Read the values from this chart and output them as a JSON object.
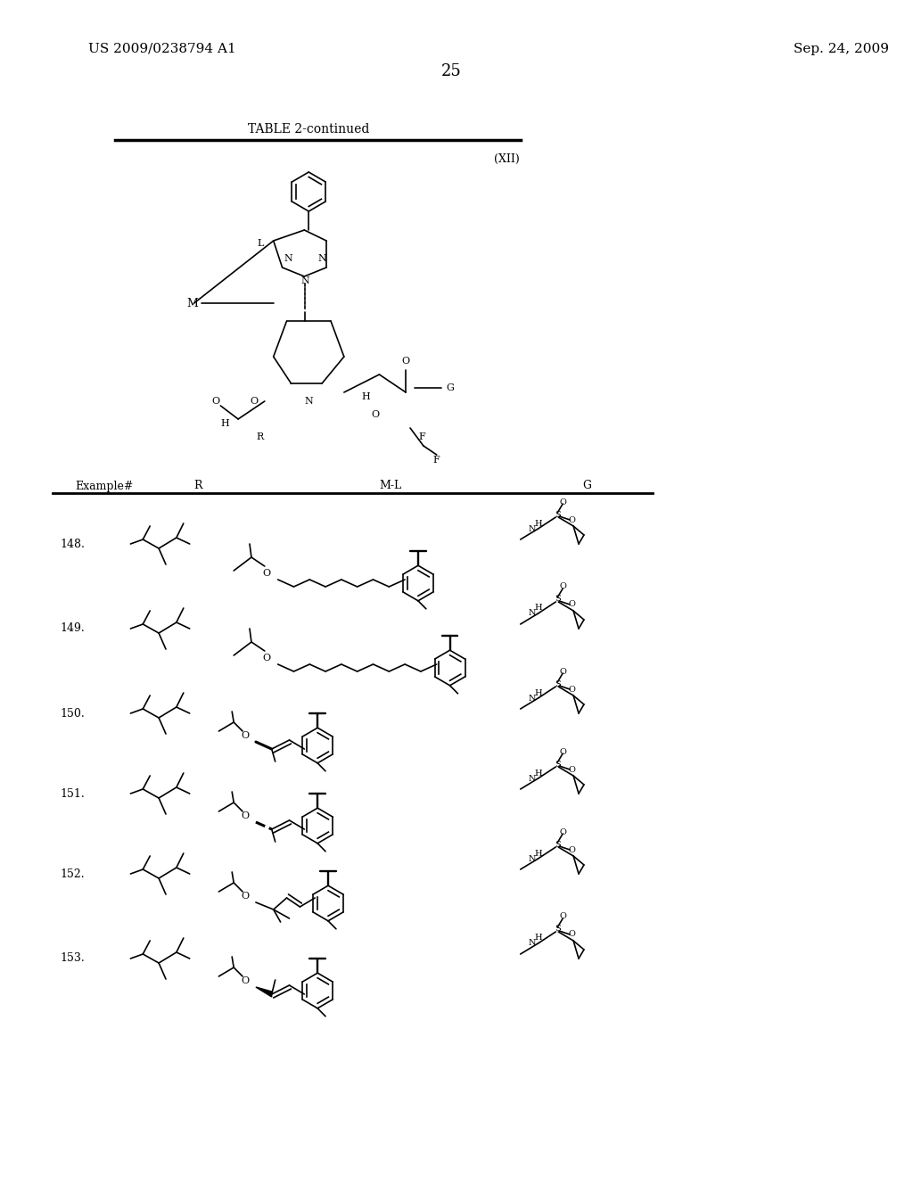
{
  "page_number": "25",
  "left_header": "US 2009/0238794 A1",
  "right_header": "Sep. 24, 2009",
  "table_title": "TABLE 2-continued",
  "structure_label": "(XII)",
  "col_headers": [
    "Example#",
    "R",
    "M-L",
    "G"
  ],
  "examples": [
    "148.",
    "149.",
    "150.",
    "151.",
    "152.",
    "153."
  ],
  "bg_color": "#ffffff",
  "line_color": "#000000",
  "font_size_header": 11,
  "font_size_body": 9
}
